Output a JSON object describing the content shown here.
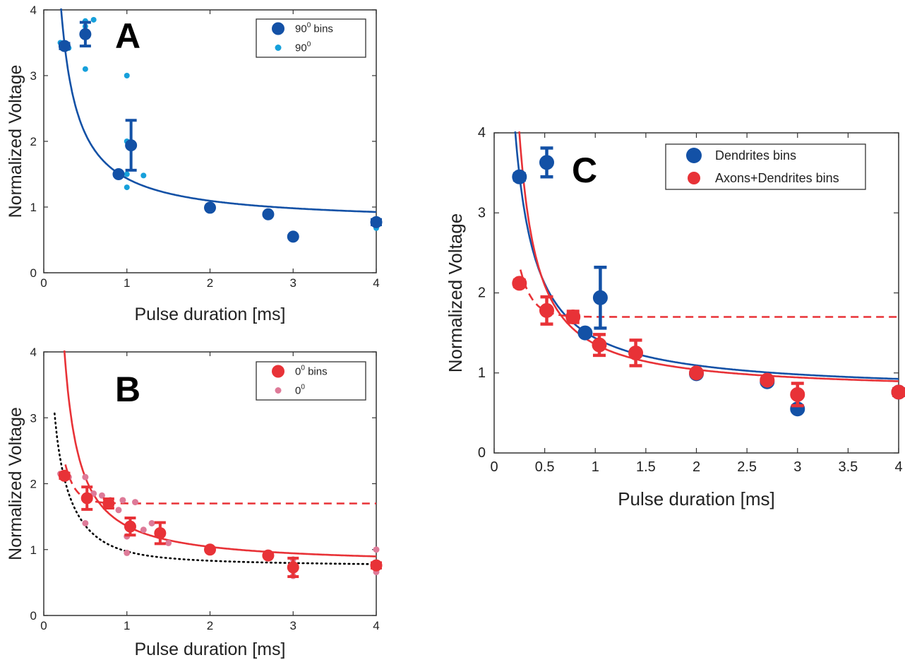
{
  "colors": {
    "dend_bins": "#1351a6",
    "dend_raw": "#16a0db",
    "axd_bins": "#e83237",
    "axd_raw": "#de7a98",
    "fit_blue": "#1351a6",
    "fit_red": "#e83237",
    "dotted": "#000000"
  },
  "chart_data": [
    {
      "panel": "A",
      "type": "scatter",
      "xlabel": "Pulse duration [ms]",
      "ylabel": "Normalized Voltage",
      "xlim": [
        0,
        4
      ],
      "ylim": [
        0,
        4
      ],
      "xticks": [
        0,
        1,
        2,
        3,
        4
      ],
      "yticks": [
        0,
        1,
        2,
        3,
        4
      ],
      "legend_position": "top-right",
      "legend": [
        {
          "base": "90",
          "sup": "0",
          "suffix": " bins"
        },
        {
          "base": "90",
          "sup": "0",
          "suffix": ""
        }
      ],
      "series": [
        {
          "role": "bins",
          "color": "#1351a6",
          "x": [
            0.25,
            0.5,
            0.9,
            1.05,
            2.0,
            2.7,
            3.0,
            4.0
          ],
          "y": [
            3.45,
            3.63,
            1.5,
            1.94,
            0.99,
            0.89,
            0.55,
            0.77
          ],
          "err": [
            0.04,
            0.18,
            0.02,
            0.38,
            0.02,
            0.02,
            0.02,
            0.04
          ]
        },
        {
          "role": "raw",
          "color": "#16a0db",
          "x": [
            0.2,
            0.25,
            0.3,
            0.5,
            0.5,
            0.5,
            0.6,
            0.5,
            1.0,
            1.0,
            1.0,
            1.0,
            1.2,
            2.0,
            2.7,
            3.0,
            4.0,
            4.0,
            4.0
          ],
          "y": [
            3.5,
            3.45,
            3.42,
            3.83,
            3.75,
            3.6,
            3.85,
            3.1,
            3.0,
            2.0,
            1.3,
            1.5,
            1.48,
            0.99,
            0.89,
            0.55,
            0.82,
            0.76,
            0.68
          ]
        },
        {
          "role": "fit",
          "kind": "solid",
          "color": "#1351a6",
          "A": 0.68,
          "B": 0.755
        }
      ]
    },
    {
      "panel": "B",
      "type": "scatter",
      "xlabel": "Pulse duration [ms]",
      "ylabel": "Normalized Voltage",
      "xlim": [
        0,
        4
      ],
      "ylim": [
        0,
        4
      ],
      "xticks": [
        0,
        1,
        2,
        3,
        4
      ],
      "yticks": [
        0,
        1,
        2,
        3,
        4
      ],
      "legend_position": "top-right",
      "legend": [
        {
          "base": "0",
          "sup": "0",
          "suffix": " bins"
        },
        {
          "base": "0",
          "sup": "0",
          "suffix": ""
        }
      ],
      "series": [
        {
          "role": "bins",
          "color": "#e83237",
          "x": [
            0.25,
            0.52,
            0.78,
            1.04,
            1.4,
            2.0,
            2.7,
            3.0,
            4.0
          ],
          "y": [
            2.12,
            1.78,
            1.7,
            1.35,
            1.25,
            1.0,
            0.91,
            0.73,
            0.76
          ],
          "err": [
            0.04,
            0.17,
            0.07,
            0.13,
            0.16,
            0.02,
            0.02,
            0.14,
            0.04
          ]
        },
        {
          "role": "raw",
          "color": "#de7a98",
          "x": [
            0.2,
            0.3,
            0.5,
            0.5,
            0.5,
            0.6,
            0.7,
            0.8,
            0.9,
            0.95,
            1.0,
            1.0,
            1.1,
            1.2,
            1.3,
            1.5,
            2.0,
            2.7,
            3.0,
            3.0,
            4.0,
            4.0,
            4.0
          ],
          "y": [
            2.15,
            2.1,
            2.1,
            1.8,
            1.4,
            1.85,
            1.82,
            1.75,
            1.6,
            1.75,
            1.2,
            0.95,
            1.72,
            1.3,
            1.4,
            1.1,
            1.0,
            0.91,
            0.85,
            0.6,
            1.0,
            0.8,
            0.66
          ]
        },
        {
          "role": "fit",
          "kind": "solid",
          "color": "#e83237",
          "A": 0.6,
          "B": 0.76,
          "C": 0.07,
          "D": 0.05
        },
        {
          "role": "fit",
          "kind": "dashed",
          "color": "#e83237",
          "plateau": 1.7,
          "Ad": 0.5,
          "Bd": 0.28
        },
        {
          "role": "fit",
          "kind": "dotted",
          "color": "#000000",
          "plateau": 0.78,
          "scale": 0.9,
          "decay": 0.3
        }
      ]
    },
    {
      "panel": "C",
      "type": "scatter",
      "xlabel": "Pulse duration [ms]",
      "ylabel": "Normalized Voltage",
      "xlim": [
        0,
        4
      ],
      "ylim": [
        0,
        4
      ],
      "xticks": [
        0,
        0.5,
        1,
        1.5,
        2,
        2.5,
        3,
        3.5,
        4
      ],
      "yticks": [
        0,
        1,
        2,
        3,
        4
      ],
      "legend_position": "top-right",
      "legend": [
        {
          "base": "Dendrites bins",
          "sup": "",
          "suffix": ""
        },
        {
          "base": "Axons+Dendrites bins",
          "sup": "",
          "suffix": ""
        }
      ],
      "series": [
        {
          "role": "bins",
          "name": "Dendrites bins",
          "color": "#1351a6",
          "x": [
            0.25,
            0.52,
            0.9,
            1.05,
            2.0,
            2.7,
            3.0,
            4.0
          ],
          "y": [
            3.45,
            3.63,
            1.5,
            1.94,
            0.99,
            0.89,
            0.55,
            0.76
          ],
          "err": [
            0.04,
            0.18,
            0.02,
            0.38,
            0.02,
            0.02,
            0.02,
            0.04
          ]
        },
        {
          "role": "bins",
          "name": "Axons+Dendrites bins",
          "color": "#e83237",
          "x": [
            0.25,
            0.52,
            0.78,
            1.04,
            1.4,
            2.0,
            2.7,
            3.0,
            4.0
          ],
          "y": [
            2.12,
            1.78,
            1.7,
            1.35,
            1.25,
            1.0,
            0.91,
            0.73,
            0.76
          ],
          "err": [
            0.04,
            0.17,
            0.07,
            0.13,
            0.16,
            0.02,
            0.02,
            0.14,
            0.04
          ]
        },
        {
          "role": "fit",
          "kind": "solid",
          "color": "#1351a6",
          "A": 0.68,
          "B": 0.755
        },
        {
          "role": "fit",
          "kind": "solid",
          "color": "#e83237",
          "A": 0.6,
          "B": 0.76,
          "C": 0.07,
          "D": 0.05
        },
        {
          "role": "fit",
          "kind": "dashed",
          "color": "#e83237",
          "plateau": 1.7,
          "Ad": 0.5,
          "Bd": 0.28
        }
      ]
    }
  ]
}
